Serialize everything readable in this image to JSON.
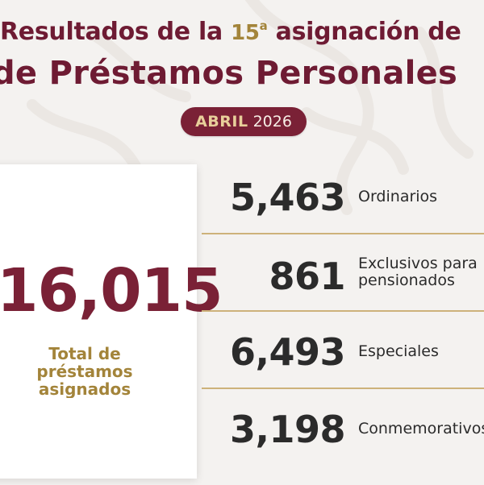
{
  "header": {
    "title_line1_text": "Resultados de la ",
    "title_line1_number": "15",
    "title_line1_superscript": "a",
    "title_line1_suffix": " asignación de",
    "title_line2": "de Préstamos Personales"
  },
  "date": {
    "month": "ABRIL",
    "year": "2026"
  },
  "total": {
    "value": "16,015",
    "label": "Total de préstamos\nasignados"
  },
  "stats": [
    {
      "value": "5,463",
      "label": "Ordinarios"
    },
    {
      "value": "861",
      "label": "Exclusivos para\npensionados"
    },
    {
      "value": "6,493",
      "label": "Especiales"
    },
    {
      "value": "3,198",
      "label": "Conmemorativos"
    }
  ],
  "colors": {
    "primary": "#7a2136",
    "gold": "#a3843a",
    "background": "#f4f2f0"
  }
}
